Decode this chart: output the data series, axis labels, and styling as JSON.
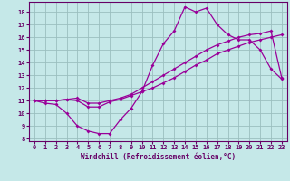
{
  "xlabel": "Windchill (Refroidissement éolien,°C)",
  "bg_color": "#c5e8e8",
  "grid_color": "#9bbfbf",
  "line_color": "#990099",
  "spine_color": "#660066",
  "xlim": [
    -0.5,
    23.5
  ],
  "ylim": [
    7.8,
    18.8
  ],
  "xticks": [
    0,
    1,
    2,
    3,
    4,
    5,
    6,
    7,
    8,
    9,
    10,
    11,
    12,
    13,
    14,
    15,
    16,
    17,
    18,
    19,
    20,
    21,
    22,
    23
  ],
  "yticks": [
    8,
    9,
    10,
    11,
    12,
    13,
    14,
    15,
    16,
    17,
    18
  ],
  "line1_y": [
    11.0,
    10.8,
    10.7,
    10.0,
    9.0,
    8.6,
    8.4,
    8.4,
    9.5,
    10.4,
    11.7,
    13.8,
    15.5,
    16.5,
    18.4,
    18.0,
    18.3,
    17.0,
    16.2,
    15.8,
    15.8,
    15.0,
    13.5,
    12.7
  ],
  "line2_y": [
    11.0,
    11.0,
    11.0,
    11.1,
    11.0,
    10.5,
    10.5,
    10.9,
    11.1,
    11.4,
    11.7,
    12.0,
    12.4,
    12.8,
    13.3,
    13.8,
    14.2,
    14.7,
    15.0,
    15.3,
    15.6,
    15.8,
    16.0,
    16.2
  ],
  "line3_y": [
    11.0,
    11.0,
    11.0,
    11.1,
    11.2,
    10.8,
    10.8,
    11.0,
    11.2,
    11.5,
    12.0,
    12.5,
    13.0,
    13.5,
    14.0,
    14.5,
    15.0,
    15.4,
    15.7,
    16.0,
    16.2,
    16.3,
    16.5,
    12.8
  ],
  "marker": "D",
  "marker_size": 2.0,
  "linewidth": 0.9,
  "tick_fontsize": 5.0,
  "xlabel_fontsize": 5.5
}
